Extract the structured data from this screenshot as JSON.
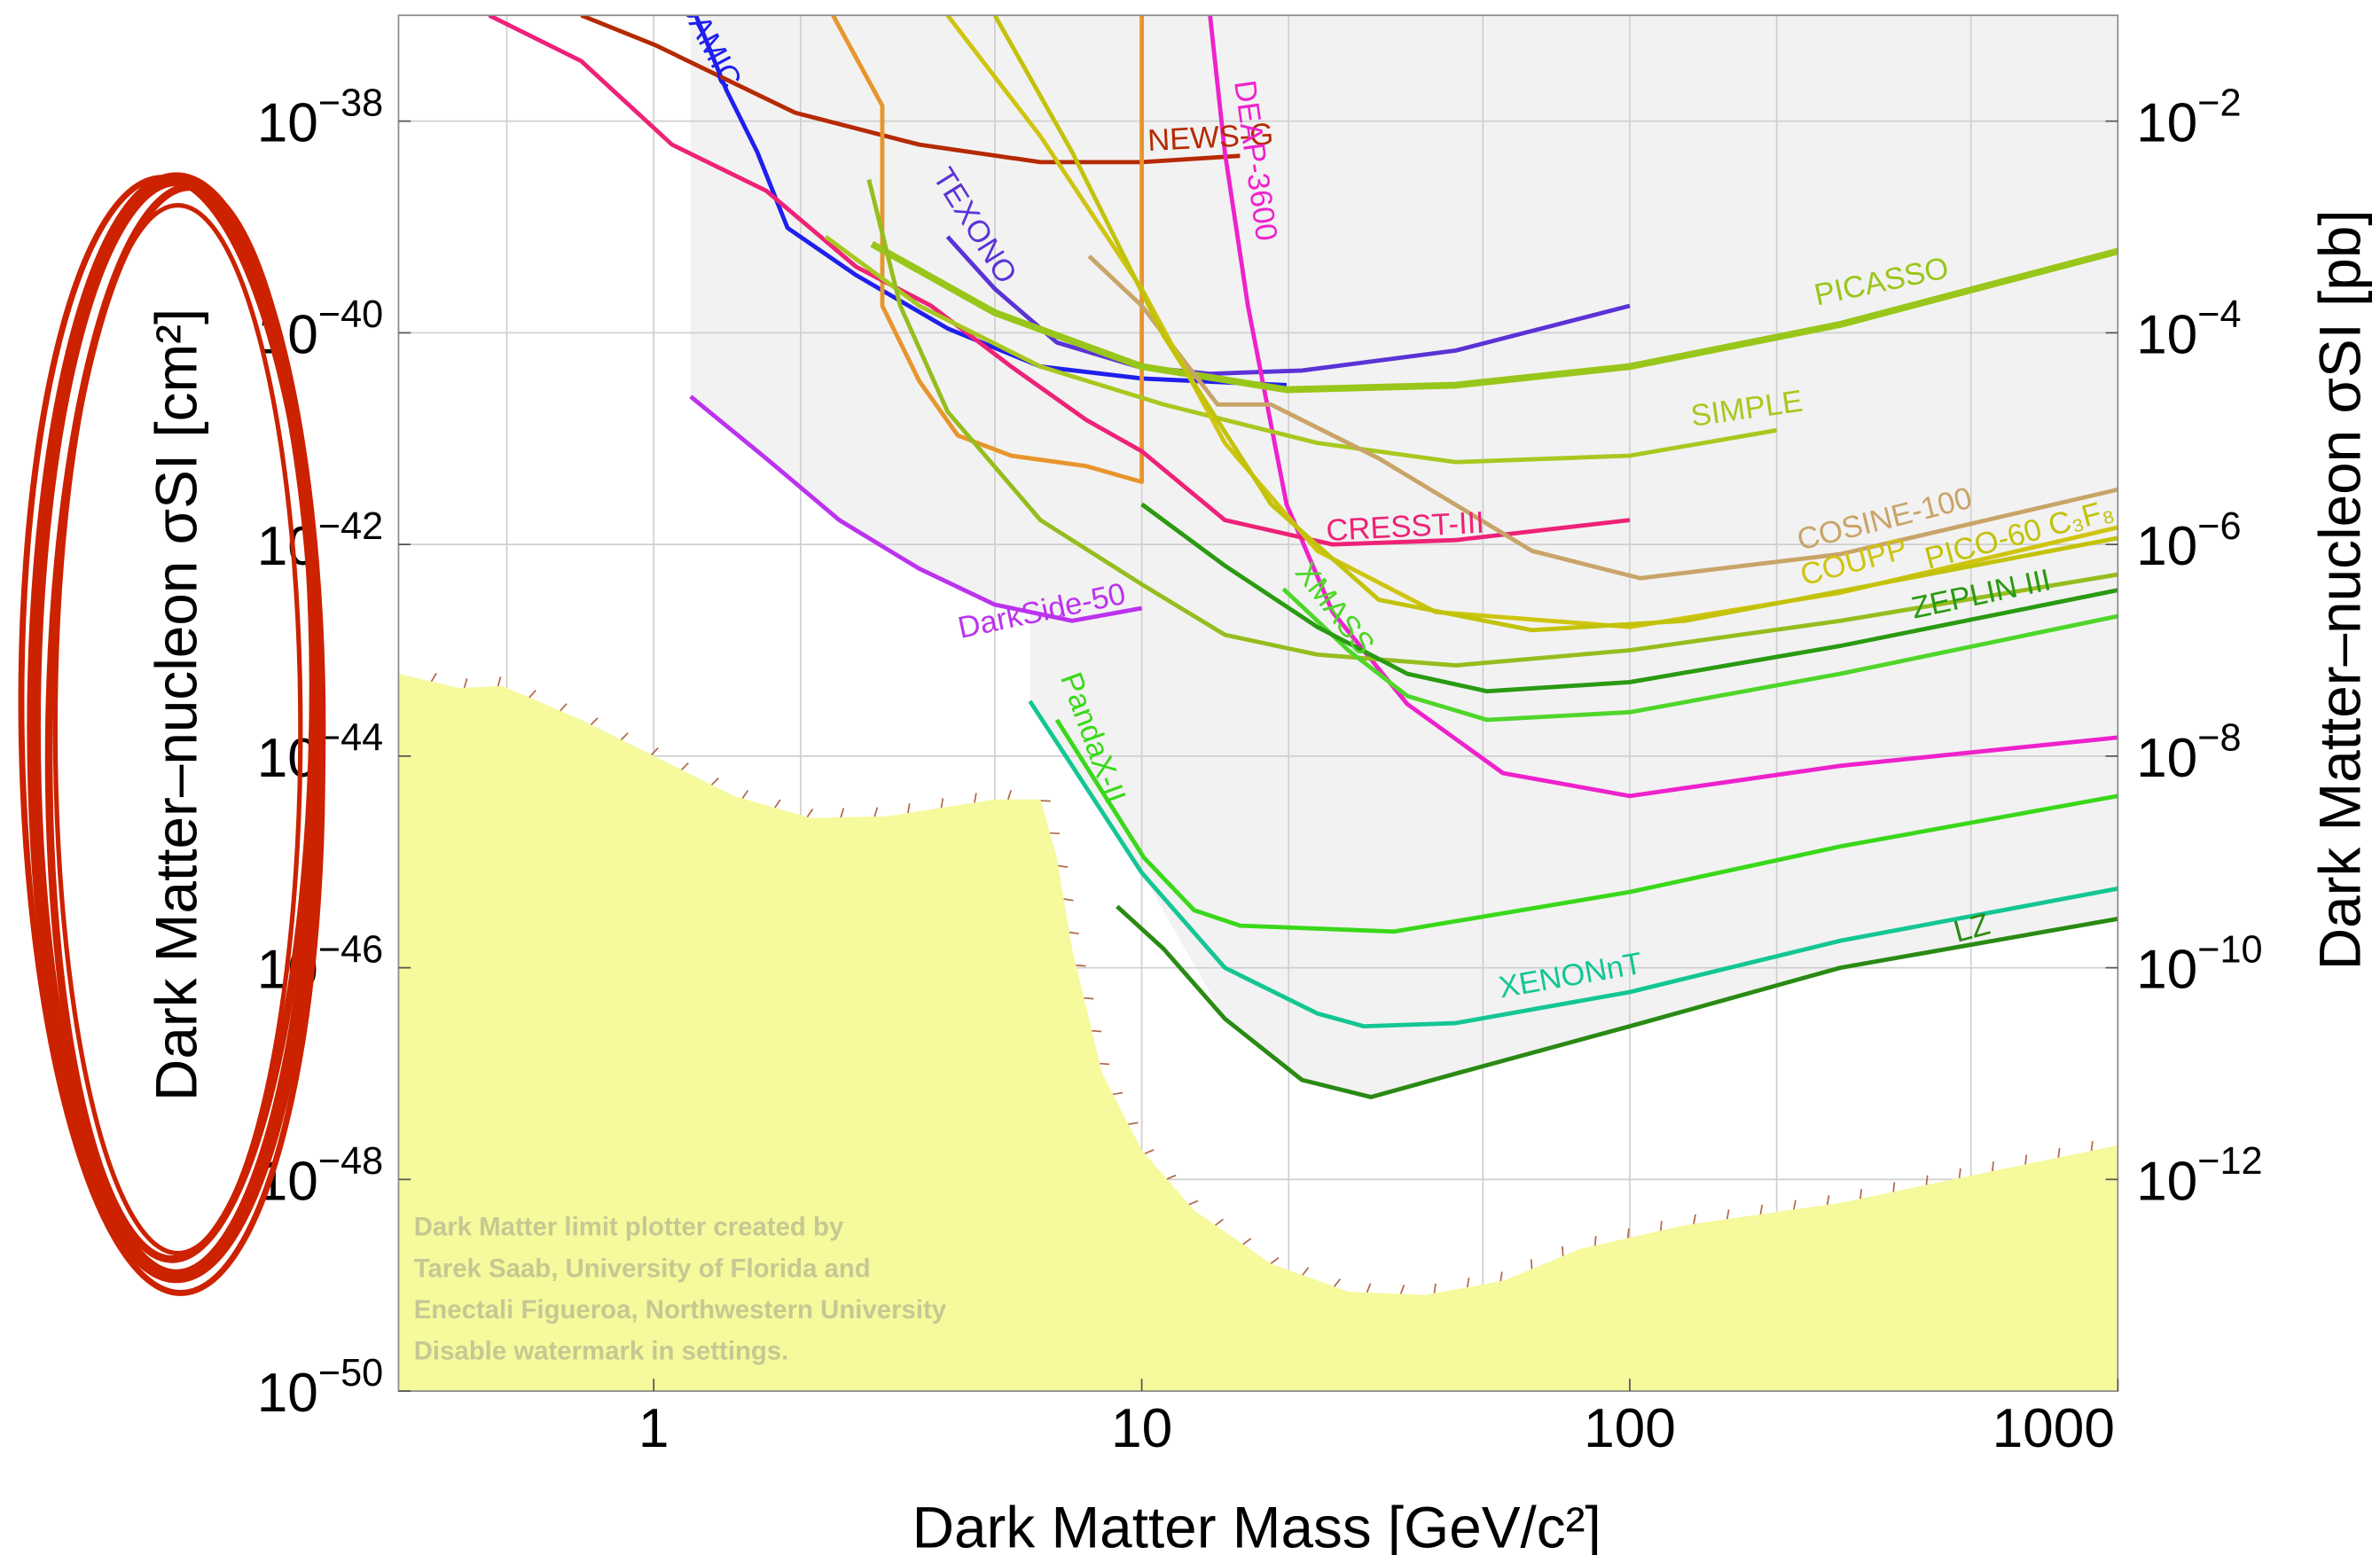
{
  "chart_data": {
    "type": "line",
    "x_label": "Dark Matter Mass [GeV/c²]",
    "y_label": "Dark Matter–nucleon σSI [cm²]",
    "y2_label": "Dark Matter–nucleon σSI [pb]",
    "xscale": "log",
    "yscale": "log",
    "xlim": [
      0.3,
      1000
    ],
    "ylim": [
      1e-50,
      1e-37
    ],
    "y2lim": [
      1e-14,
      0.1
    ],
    "xticks": [
      1,
      10,
      100,
      1000
    ],
    "xgrid_minor": [
      0.5,
      2,
      5,
      20,
      50,
      200,
      500
    ],
    "yticks": [
      {
        "value": 1e-38,
        "label": "10−38"
      },
      {
        "value": 1e-40,
        "label": "10−40"
      },
      {
        "value": 1e-42,
        "label": "10−42"
      },
      {
        "value": 1e-44,
        "label": "10−44"
      },
      {
        "value": 1e-46,
        "label": "10−46"
      },
      {
        "value": 1e-48,
        "label": "10−48"
      },
      {
        "value": 1e-50,
        "label": "10−50"
      }
    ],
    "y2ticks": [
      {
        "value": 0.01,
        "label": "10−2"
      },
      {
        "value": 0.0001,
        "label": "10−4"
      },
      {
        "value": 1e-06,
        "label": "10−6"
      },
      {
        "value": 1e-08,
        "label": "10−8"
      },
      {
        "value": 1e-10,
        "label": "10−10"
      },
      {
        "value": 1e-12,
        "label": "10−12"
      }
    ],
    "grid": true,
    "watermark": [
      "Dark Matter limit plotter created by",
      "Tarek Saab, University of Florida and",
      "Enectali Figueroa, Northwestern University",
      "Disable watermark in settings."
    ],
    "regions": [
      {
        "color": "#f2f2f2",
        "fill_to": "top",
        "x": [
          1.19,
          1.19,
          1.7,
          2.4,
          3.5,
          5.0,
          5.9,
          5.9,
          7.2,
          10,
          14.8,
          21.3,
          29.5,
          44,
          100,
          270,
          1000,
          1000
        ],
        "values": [
          1e-37,
          2.5e-41,
          6.5e-42,
          1.7e-42,
          5.9e-43,
          2.7e-43,
          2.4e-43,
          3.3e-44,
          8.1e-45,
          7.9e-46,
          3.3e-47,
          8.7e-48,
          6e-48,
          1e-47,
          2.8e-47,
          1e-46,
          2.9e-46,
          1e-37
        ]
      },
      {
        "color": "#f6f99c",
        "fill_to": "bottom",
        "x": [
          0.3,
          0.4,
          0.49,
          0.71,
          1.01,
          1.46,
          2.1,
          3.0,
          5.0,
          6.2,
          6.7,
          7.2,
          8.3,
          10,
          12.8,
          18.4,
          26.5,
          38,
          55,
          79,
          130,
          270,
          555,
          1000
        ],
        "values": [
          6e-44,
          4.4e-44,
          4.6e-44,
          2.2e-44,
          9.8e-45,
          4.2e-45,
          2.6e-45,
          2.7e-45,
          3.9e-45,
          3.9e-45,
          1.1e-45,
          1.5e-46,
          1e-47,
          1.9e-48,
          5.1e-49,
          1.6e-49,
          8.7e-50,
          8.1e-50,
          1.1e-49,
          2.2e-49,
          3.7e-49,
          6e-49,
          1.2e-48,
          2.1e-48
        ]
      }
    ],
    "series": [
      {
        "name": "DAMIC",
        "color": "#1f1fee",
        "x": [
          1.22,
          1.41,
          1.63,
          1.88,
          2.6,
          4.0,
          6.2,
          10,
          19.8
        ],
        "values": [
          1e-37,
          1.95e-38,
          5.1e-39,
          9.8e-40,
          3.5e-40,
          1.1e-40,
          4.8e-41,
          3.7e-41,
          3.2e-41
        ]
      },
      {
        "name": "TEXONO",
        "color": "#5a33d6",
        "x": [
          4.0,
          5.0,
          6.7,
          9.8,
          13.8,
          21.3,
          44,
          100
        ],
        "values": [
          8.1e-40,
          2.6e-40,
          8.1e-41,
          4.8e-41,
          4.1e-41,
          4.4e-41,
          6.8e-41,
          1.8e-40
        ]
      },
      {
        "name": "NEWS-G",
        "color": "#b52a00",
        "x": [
          0.71,
          1.01,
          1.95,
          3.5,
          6.2,
          10,
          15.9
        ],
        "values": [
          1e-37,
          5.2e-38,
          1.2e-38,
          6e-39,
          4.1e-39,
          4.1e-39,
          4.7e-39
        ]
      },
      {
        "color": "#e8952c",
        "x": [
          2.33,
          2.94,
          2.94,
          3.5,
          4.2,
          5.4,
          7.7,
          10,
          10
        ],
        "values": [
          1e-37,
          1.4e-38,
          1.8e-40,
          3.5e-41,
          1.07e-41,
          6.9e-42,
          5.5e-42,
          3.9e-42,
          1e-37
        ]
      },
      {
        "name": "DEAP-3600",
        "color": "#ee22cc",
        "x": [
          13.8,
          14.8,
          16.5,
          19.8,
          24.6,
          35,
          55,
          100,
          270,
          1000
        ],
        "values": [
          1e-37,
          5.1e-39,
          1.8e-40,
          2.4e-42,
          2.3e-43,
          3.1e-44,
          6.9e-45,
          4.2e-45,
          8.1e-45,
          1.5e-44
        ]
      },
      {
        "name": "CRESST-III",
        "color": "#ee2277",
        "x": [
          0.46,
          0.71,
          1.09,
          1.7,
          2.6,
          3.7,
          5.4,
          7.7,
          10,
          14.8,
          24.6,
          44,
          100
        ],
        "values": [
          1e-37,
          3.7e-38,
          6e-39,
          2.2e-39,
          4.2e-40,
          1.8e-40,
          4.8e-41,
          1.5e-41,
          7.6e-42,
          1.7e-42,
          1e-42,
          1.1e-42,
          1.7e-42
        ]
      },
      {
        "name": "DarkSide-50",
        "color": "#bb33ee",
        "x": [
          1.19,
          1.7,
          2.4,
          3.5,
          5.0,
          7.2,
          10
        ],
        "values": [
          2.5e-41,
          6.5e-42,
          1.7e-42,
          5.9e-43,
          2.7e-43,
          1.9e-43,
          2.5e-43
        ]
      },
      {
        "name": "PICASSO",
        "color": "#99c61a",
        "x": [
          2.8,
          5.0,
          10,
          19.8,
          44,
          100,
          270,
          1000
        ],
        "values": [
          6.9e-40,
          1.55e-40,
          4.8e-41,
          2.9e-41,
          3.2e-41,
          4.8e-41,
          1.2e-40,
          5.9e-40
        ]
      },
      {
        "name": "SIMPLE",
        "color": "#a8c81f",
        "x": [
          2.25,
          3.5,
          6.2,
          11.1,
          22.9,
          44,
          100,
          200
        ],
        "values": [
          8.1e-40,
          1.8e-40,
          4.8e-41,
          2.1e-41,
          9.1e-42,
          6e-42,
          6.9e-42,
          1.2e-41
        ]
      },
      {
        "name": "COSINE-100",
        "color": "#c9a468",
        "x": [
          7.8,
          10,
          14.3,
          18.4,
          30.6,
          63,
          105,
          270,
          1000
        ],
        "values": [
          5.3e-40,
          1.8e-40,
          2.1e-41,
          2.1e-41,
          6.5e-42,
          8.7e-43,
          4.8e-43,
          8.1e-43,
          3.3e-42
        ]
      },
      {
        "name": "COUPP",
        "color": "#cfc40f",
        "x": [
          4.0,
          6.2,
          10,
          14.8,
          22.9,
          40,
          100,
          270,
          1000
        ],
        "values": [
          1e-37,
          7.2e-39,
          2.6e-40,
          9.1e-42,
          8.7e-43,
          2.3e-43,
          1.66e-43,
          3.5e-43,
          1.45e-42
        ]
      },
      {
        "name": "PICO-60 C₃F₈",
        "color": "#c2c20a",
        "x": [
          5.0,
          7.2,
          11.1,
          18.4,
          30.6,
          63,
          130,
          1000
        ],
        "values": [
          1e-37,
          5.1e-39,
          9.3e-41,
          2.4e-42,
          3e-43,
          1.55e-43,
          1.9e-43,
          1.15e-42
        ]
      },
      {
        "color": "#95bd1e",
        "x": [
          2.76,
          3.2,
          4.0,
          6.2,
          10,
          14.8,
          22.9,
          44,
          100,
          270,
          1000
        ],
        "values": [
          2.8e-39,
          1.8e-40,
          1.8e-41,
          1.7e-42,
          4.2e-43,
          1.4e-43,
          9.1e-44,
          7.2e-44,
          1e-43,
          1.9e-43,
          5.2e-43
        ]
      },
      {
        "name": "XMASS",
        "color": "#4fd62a",
        "x": [
          19.5,
          22.9,
          26.5,
          35,
          51,
          100,
          270,
          1000
        ],
        "values": [
          3.8e-43,
          1.9e-43,
          1e-43,
          3.7e-44,
          2.2e-44,
          2.6e-44,
          6e-44,
          2.1e-43
        ]
      },
      {
        "name": "ZEPLIN III",
        "color": "#2a9a12",
        "x": [
          10,
          14.8,
          22.9,
          35,
          51,
          100,
          270,
          1000
        ],
        "values": [
          2.4e-42,
          6.3e-43,
          1.66e-43,
          6e-44,
          4.1e-44,
          5e-44,
          1.1e-43,
          3.7e-43
        ]
      },
      {
        "name": "PandaX-II",
        "color": "#3ad81a",
        "x": [
          6.7,
          10.1,
          12.8,
          15.9,
          32.9,
          100,
          270,
          1000
        ],
        "values": [
          2.2e-44,
          1.1e-45,
          3.5e-46,
          2.5e-46,
          2.2e-46,
          5.2e-46,
          1.4e-45,
          4.2e-45
        ]
      },
      {
        "name": "XENONnT",
        "color": "#14c694",
        "x": [
          5.9,
          7.2,
          10,
          14.8,
          22.9,
          28.5,
          44,
          100,
          270,
          1000
        ],
        "values": [
          3.3e-44,
          8.1e-45,
          7.9e-46,
          1e-46,
          3.7e-47,
          2.8e-47,
          3e-47,
          5.9e-47,
          1.8e-46,
          5.6e-46
        ]
      },
      {
        "name": "LZ",
        "color": "#2a8a14",
        "x": [
          8.9,
          11.1,
          14.8,
          21.3,
          29.5,
          44,
          100,
          270,
          1000
        ],
        "values": [
          3.8e-46,
          1.5e-46,
          3.3e-47,
          8.7e-48,
          6e-48,
          1e-47,
          2.8e-47,
          1e-46,
          2.9e-46
        ]
      }
    ]
  }
}
